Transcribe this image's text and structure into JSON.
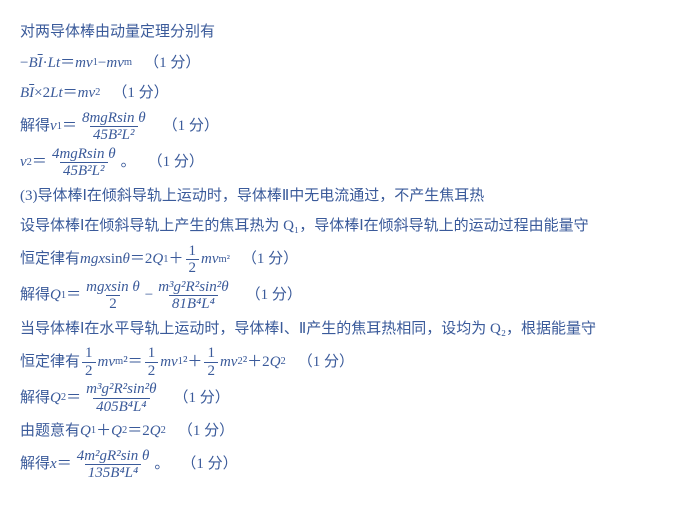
{
  "color": "#3a5a9a",
  "fontsize": 15,
  "pts": "（1 分）",
  "lines": {
    "l1": "对两导体棒由动量定理分别有",
    "l2a": "−",
    "l2b": "B",
    "l2c": "I",
    "l2d": " · ",
    "l2e": "Lt",
    "l2f": "＝",
    "l2g": "mv",
    "l2h": "1",
    "l2i": "−",
    "l2j": "mv",
    "l2k": "m",
    "l3a": "B",
    "l3b": "I",
    "l3c": "×2",
    "l3d": "Lt",
    "l3e": "＝",
    "l3f": "mv",
    "l3g": "2",
    "l4a": "解得 ",
    "l4b": "v",
    "l4c": "1",
    "l4d": "＝",
    "l4num": "8mgRsin θ",
    "l4den": "45B²L²",
    "l5a": "v",
    "l5b": "2",
    "l5c": "＝",
    "l5num": "4mgRsin θ",
    "l5den": "45B²L²",
    "l5end": "。",
    "l6": "(3)导体棒Ⅰ在倾斜导轨上运动时，导体棒Ⅱ中无电流通过，不产生焦耳热",
    "l7": "设导体棒Ⅰ在倾斜导轨上产生的焦耳热为 Q₁，导体棒Ⅰ在倾斜导轨上的运动过程由能量守",
    "l8a": "恒定律有 ",
    "l8b": "mgx",
    "l8c": "sin ",
    "l8d": "θ",
    "l8e": "＝2",
    "l8f": "Q",
    "l8g": "1",
    "l8h": "＋",
    "l8i_num": "1",
    "l8i_den": "2",
    "l8j": "mv",
    "l8k": "m",
    "l8l": "²",
    "l9a": "解得 ",
    "l9b": "Q",
    "l9c": "1",
    "l9d": "＝",
    "l9n1": "mgxsin θ",
    "l9d1": "2",
    "l9mid": "−",
    "l9n2": "m³g²R²sin²θ",
    "l9d2": "81B⁴L⁴",
    "l10": "当导体棒Ⅰ在水平导轨上运动时，导体棒Ⅰ、Ⅱ产生的焦耳热相同，设均为 Q₂，根据能量守",
    "l11a": "恒定律有",
    "l11b_num": "1",
    "l11b_den": "2",
    "l11c": "mv",
    "l11cs": "m",
    "l11d": "²＝",
    "l11e_num": "1",
    "l11e_den": "2",
    "l11f": "mv",
    "l11fs": "1",
    "l11g": "²＋",
    "l11h_num": "1",
    "l11h_den": "2",
    "l11i": "mv",
    "l11is": "2",
    "l11j": "²＋2",
    "l11k": "Q",
    "l11ks": "2",
    "l12a": "解得 ",
    "l12b": "Q",
    "l12c": "2",
    "l12d": "＝",
    "l12n": "m³g²R²sin²θ",
    "l12dn": "405B⁴L⁴",
    "l13a": "由题意有 ",
    "l13b": "Q",
    "l13c": "1",
    "l13d": "＋",
    "l13e": "Q",
    "l13f": "2",
    "l13g": "＝2",
    "l13h": "Q",
    "l13i": "2",
    "l14a": "解得 ",
    "l14b": "x",
    "l14c": "＝",
    "l14n": "4m²gR²sin θ",
    "l14d": "135B⁴L⁴",
    "l14end": "。"
  }
}
